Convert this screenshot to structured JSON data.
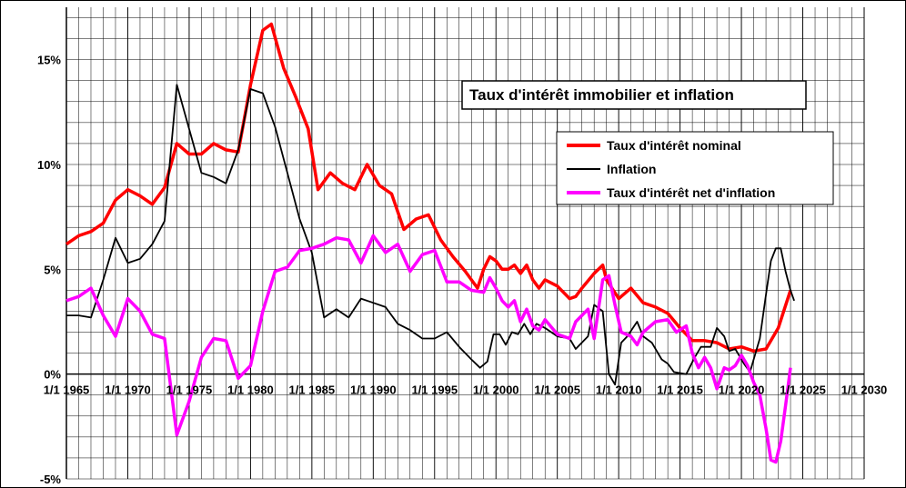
{
  "chart_data": {
    "type": "line",
    "title": "Taux d'intérêt immobilier  et inflation",
    "xlim": [
      1965,
      2030
    ],
    "ylim": [
      -5,
      17.5
    ],
    "x_tick_labels": [
      {
        "x": 1965,
        "label": "1/1 1965"
      },
      {
        "x": 1970,
        "label": "1/1 1970"
      },
      {
        "x": 1975,
        "label": "1/1 1975"
      },
      {
        "x": 1980,
        "label": "1/1 1980"
      },
      {
        "x": 1985,
        "label": "1/1 1985"
      },
      {
        "x": 1990,
        "label": "1/1 1990"
      },
      {
        "x": 1995,
        "label": "1/1 1995"
      },
      {
        "x": 2000,
        "label": "1/1 2000"
      },
      {
        "x": 2005,
        "label": "1/1 2005"
      },
      {
        "x": 2010,
        "label": "1/1 2010"
      },
      {
        "x": 2015,
        "label": "1/1 2015"
      },
      {
        "x": 2020,
        "label": "1/1 2020"
      },
      {
        "x": 2025,
        "label": "1/1 2025"
      },
      {
        "x": 2030,
        "label": "1/1 2030"
      }
    ],
    "y_tick_labels": [
      {
        "y": 15,
        "label": "15%"
      },
      {
        "y": 10,
        "label": "10%"
      },
      {
        "y": 5,
        "label": "5%"
      },
      {
        "y": 0,
        "label": "0%"
      },
      {
        "y": -5,
        "label": "-5%"
      }
    ],
    "grid": true,
    "legend_position": "right",
    "series": [
      {
        "name": "Taux d'intérêt nominal",
        "color": "#ff0000",
        "points": [
          [
            1965,
            6.2
          ],
          [
            1966,
            6.6
          ],
          [
            1967,
            6.8
          ],
          [
            1968,
            7.2
          ],
          [
            1969,
            8.3
          ],
          [
            1970,
            8.8
          ],
          [
            1971,
            8.5
          ],
          [
            1972,
            8.1
          ],
          [
            1973,
            8.9
          ],
          [
            1974,
            11.0
          ],
          [
            1975,
            10.5
          ],
          [
            1976,
            10.5
          ],
          [
            1977,
            11.0
          ],
          [
            1978,
            10.7
          ],
          [
            1979,
            10.6
          ],
          [
            1980,
            13.8
          ],
          [
            1981,
            16.4
          ],
          [
            1981.7,
            16.7
          ],
          [
            1982.7,
            14.6
          ],
          [
            1983.7,
            13.2
          ],
          [
            1984.7,
            11.7
          ],
          [
            1985.5,
            8.8
          ],
          [
            1986.5,
            9.6
          ],
          [
            1987.5,
            9.1
          ],
          [
            1988.5,
            8.8
          ],
          [
            1989.5,
            10.0
          ],
          [
            1990.5,
            9.0
          ],
          [
            1991.5,
            8.6
          ],
          [
            1992.5,
            6.9
          ],
          [
            1993.5,
            7.4
          ],
          [
            1994.5,
            7.6
          ],
          [
            1995.5,
            6.4
          ],
          [
            1996.5,
            5.6
          ],
          [
            1997.5,
            4.9
          ],
          [
            1998.5,
            4.1
          ],
          [
            1999,
            5.0
          ],
          [
            1999.5,
            5.6
          ],
          [
            2000,
            5.4
          ],
          [
            2000.5,
            5.0
          ],
          [
            2001,
            5.0
          ],
          [
            2001.5,
            5.2
          ],
          [
            2002,
            4.8
          ],
          [
            2002.5,
            5.2
          ],
          [
            2003,
            4.5
          ],
          [
            2003.5,
            4.1
          ],
          [
            2004,
            4.5
          ],
          [
            2005,
            4.2
          ],
          [
            2006,
            3.6
          ],
          [
            2006.5,
            3.7
          ],
          [
            2007,
            4.1
          ],
          [
            2008,
            4.8
          ],
          [
            2008.7,
            5.2
          ],
          [
            2009,
            4.5
          ],
          [
            2010,
            3.6
          ],
          [
            2011,
            4.1
          ],
          [
            2012,
            3.4
          ],
          [
            2013,
            3.2
          ],
          [
            2014,
            2.9
          ],
          [
            2015,
            2.2
          ],
          [
            2016,
            1.6
          ],
          [
            2017,
            1.6
          ],
          [
            2018,
            1.5
          ],
          [
            2019,
            1.2
          ],
          [
            2020,
            1.3
          ],
          [
            2021,
            1.1
          ],
          [
            2022,
            1.2
          ],
          [
            2023,
            2.2
          ],
          [
            2024,
            4.0
          ]
        ]
      },
      {
        "name": "Inflation",
        "color": "#000000",
        "points": [
          [
            1965,
            2.8
          ],
          [
            1966,
            2.8
          ],
          [
            1967,
            2.7
          ],
          [
            1968,
            4.5
          ],
          [
            1969,
            6.5
          ],
          [
            1970,
            5.3
          ],
          [
            1971,
            5.5
          ],
          [
            1972,
            6.2
          ],
          [
            1973,
            7.3
          ],
          [
            1974,
            13.8
          ],
          [
            1975,
            11.7
          ],
          [
            1976,
            9.6
          ],
          [
            1977,
            9.4
          ],
          [
            1978,
            9.1
          ],
          [
            1979,
            10.7
          ],
          [
            1980,
            13.6
          ],
          [
            1981,
            13.4
          ],
          [
            1982,
            11.8
          ],
          [
            1983,
            9.6
          ],
          [
            1984,
            7.4
          ],
          [
            1985,
            5.8
          ],
          [
            1986,
            2.7
          ],
          [
            1987,
            3.1
          ],
          [
            1988,
            2.7
          ],
          [
            1989,
            3.6
          ],
          [
            1990,
            3.4
          ],
          [
            1991,
            3.2
          ],
          [
            1992,
            2.4
          ],
          [
            1993,
            2.1
          ],
          [
            1994,
            1.7
          ],
          [
            1995,
            1.7
          ],
          [
            1996,
            2.0
          ],
          [
            1997,
            1.3
          ],
          [
            1998,
            0.7
          ],
          [
            1998.7,
            0.3
          ],
          [
            1999.3,
            0.6
          ],
          [
            1999.8,
            1.9
          ],
          [
            2000.3,
            1.9
          ],
          [
            2000.8,
            1.4
          ],
          [
            2001.3,
            2.0
          ],
          [
            2001.8,
            1.9
          ],
          [
            2002.3,
            2.4
          ],
          [
            2002.8,
            1.9
          ],
          [
            2003.3,
            2.4
          ],
          [
            2004,
            2.2
          ],
          [
            2005,
            1.8
          ],
          [
            2006,
            1.7
          ],
          [
            2006.5,
            1.2
          ],
          [
            2007.5,
            1.8
          ],
          [
            2008,
            3.3
          ],
          [
            2008.7,
            3.0
          ],
          [
            2009.2,
            0.0
          ],
          [
            2009.7,
            -0.5
          ],
          [
            2010.2,
            1.5
          ],
          [
            2010.7,
            1.8
          ],
          [
            2011.5,
            2.5
          ],
          [
            2012,
            1.8
          ],
          [
            2012.7,
            1.5
          ],
          [
            2013.5,
            0.7
          ],
          [
            2014,
            0.5
          ],
          [
            2014.5,
            0.1
          ],
          [
            2015.5,
            0.0
          ],
          [
            2016.2,
            0.8
          ],
          [
            2016.7,
            1.3
          ],
          [
            2017.5,
            1.3
          ],
          [
            2018,
            2.2
          ],
          [
            2018.6,
            1.8
          ],
          [
            2019,
            1.1
          ],
          [
            2019.5,
            1.2
          ],
          [
            2020.2,
            0.5
          ],
          [
            2020.7,
            0.1
          ],
          [
            2021.5,
            1.7
          ],
          [
            2022,
            3.8
          ],
          [
            2022.4,
            5.4
          ],
          [
            2022.8,
            6.0
          ],
          [
            2023.2,
            6.0
          ],
          [
            2023.6,
            4.9
          ],
          [
            2024,
            4.0
          ],
          [
            2024.3,
            3.5
          ]
        ]
      },
      {
        "name": "Taux d'intérêt net d'inflation",
        "color": "#ff00ff",
        "points": [
          [
            1965,
            3.5
          ],
          [
            1966,
            3.7
          ],
          [
            1967,
            4.1
          ],
          [
            1968,
            2.8
          ],
          [
            1969,
            1.8
          ],
          [
            1970,
            3.6
          ],
          [
            1971,
            3.0
          ],
          [
            1972,
            1.9
          ],
          [
            1973,
            1.7
          ],
          [
            1974,
            -2.9
          ],
          [
            1975,
            -1.3
          ],
          [
            1976,
            0.8
          ],
          [
            1977,
            1.7
          ],
          [
            1978,
            1.6
          ],
          [
            1979,
            -0.2
          ],
          [
            1980,
            0.4
          ],
          [
            1981,
            3.0
          ],
          [
            1982,
            4.9
          ],
          [
            1983,
            5.1
          ],
          [
            1984,
            5.9
          ],
          [
            1985,
            6.0
          ],
          [
            1986,
            6.2
          ],
          [
            1987,
            6.5
          ],
          [
            1988,
            6.4
          ],
          [
            1989,
            5.3
          ],
          [
            1990,
            6.6
          ],
          [
            1991,
            5.8
          ],
          [
            1992,
            6.2
          ],
          [
            1993,
            4.9
          ],
          [
            1994,
            5.7
          ],
          [
            1995,
            5.9
          ],
          [
            1996,
            4.4
          ],
          [
            1997,
            4.4
          ],
          [
            1998,
            4.0
          ],
          [
            1999,
            3.9
          ],
          [
            1999.5,
            4.6
          ],
          [
            2000,
            4.1
          ],
          [
            2000.5,
            3.5
          ],
          [
            2001,
            3.2
          ],
          [
            2001.5,
            3.5
          ],
          [
            2002,
            2.5
          ],
          [
            2002.5,
            3.1
          ],
          [
            2003,
            2.3
          ],
          [
            2003.5,
            2.1
          ],
          [
            2004,
            2.6
          ],
          [
            2005,
            1.9
          ],
          [
            2006,
            1.7
          ],
          [
            2006.5,
            2.5
          ],
          [
            2007,
            2.8
          ],
          [
            2007.5,
            3.1
          ],
          [
            2008,
            1.7
          ],
          [
            2008.7,
            4.5
          ],
          [
            2009.2,
            4.7
          ],
          [
            2009.7,
            3.3
          ],
          [
            2010.2,
            2.0
          ],
          [
            2011,
            1.8
          ],
          [
            2011.5,
            1.4
          ],
          [
            2012,
            2.0
          ],
          [
            2013,
            2.5
          ],
          [
            2014,
            2.6
          ],
          [
            2014.7,
            2.0
          ],
          [
            2015.5,
            2.3
          ],
          [
            2016,
            1.0
          ],
          [
            2016.5,
            0.3
          ],
          [
            2017,
            0.8
          ],
          [
            2017.5,
            0.3
          ],
          [
            2018,
            -0.7
          ],
          [
            2018.6,
            0.3
          ],
          [
            2019,
            0.2
          ],
          [
            2019.5,
            0.4
          ],
          [
            2020,
            0.9
          ],
          [
            2020.5,
            0.4
          ],
          [
            2021,
            -0.4
          ],
          [
            2021.5,
            -1.0
          ],
          [
            2022,
            -2.6
          ],
          [
            2022.4,
            -4.1
          ],
          [
            2022.8,
            -4.2
          ],
          [
            2023.2,
            -3.2
          ],
          [
            2023.6,
            -1.5
          ],
          [
            2024,
            0.3
          ]
        ]
      }
    ]
  }
}
